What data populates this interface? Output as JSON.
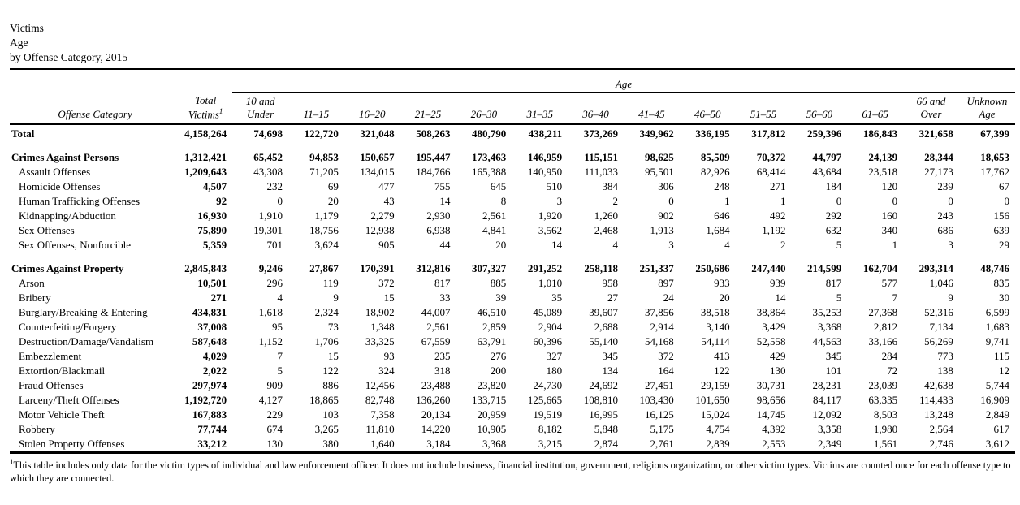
{
  "page": {
    "title_lines": [
      "Victims",
      "Age",
      "by Offense Category, 2015"
    ]
  },
  "table": {
    "age_spanner_label": "Age",
    "headers": {
      "offense_category": "Offense Category",
      "total_line1": "Total",
      "total_line2": "Victims",
      "total_sup": "1"
    },
    "age_headers": [
      "10 and\nUnder",
      "11–15",
      "16–20",
      "21–25",
      "26–30",
      "31–35",
      "36–40",
      "41–45",
      "46–50",
      "51–55",
      "56–60",
      "61–65",
      "66 and\nOver",
      "Unknown\nAge"
    ],
    "rows": [
      {
        "label": "Total",
        "type": "grand",
        "values": [
          "4,158,264",
          "74,698",
          "122,720",
          "321,048",
          "508,263",
          "480,790",
          "438,211",
          "373,269",
          "349,962",
          "336,195",
          "317,812",
          "259,396",
          "186,843",
          "321,658",
          "67,399"
        ]
      },
      {
        "type": "gap"
      },
      {
        "label": "Crimes Against Persons",
        "type": "section",
        "values": [
          "1,312,421",
          "65,452",
          "94,853",
          "150,657",
          "195,447",
          "173,463",
          "146,959",
          "115,151",
          "98,625",
          "85,509",
          "70,372",
          "44,797",
          "24,139",
          "28,344",
          "18,653"
        ]
      },
      {
        "label": "Assault Offenses",
        "type": "detail",
        "values": [
          "1,209,643",
          "43,308",
          "71,205",
          "134,015",
          "184,766",
          "165,388",
          "140,950",
          "111,033",
          "95,501",
          "82,926",
          "68,414",
          "43,684",
          "23,518",
          "27,173",
          "17,762"
        ]
      },
      {
        "label": "Homicide Offenses",
        "type": "detail",
        "values": [
          "4,507",
          "232",
          "69",
          "477",
          "755",
          "645",
          "510",
          "384",
          "306",
          "248",
          "271",
          "184",
          "120",
          "239",
          "67"
        ]
      },
      {
        "label": "Human Trafficking Offenses",
        "type": "detail",
        "values": [
          "92",
          "0",
          "20",
          "43",
          "14",
          "8",
          "3",
          "2",
          "0",
          "1",
          "1",
          "0",
          "0",
          "0",
          "0"
        ]
      },
      {
        "label": "Kidnapping/Abduction",
        "type": "detail",
        "values": [
          "16,930",
          "1,910",
          "1,179",
          "2,279",
          "2,930",
          "2,561",
          "1,920",
          "1,260",
          "902",
          "646",
          "492",
          "292",
          "160",
          "243",
          "156"
        ]
      },
      {
        "label": "Sex Offenses",
        "type": "detail",
        "values": [
          "75,890",
          "19,301",
          "18,756",
          "12,938",
          "6,938",
          "4,841",
          "3,562",
          "2,468",
          "1,913",
          "1,684",
          "1,192",
          "632",
          "340",
          "686",
          "639"
        ]
      },
      {
        "label": "Sex Offenses, Nonforcible",
        "type": "detail",
        "values": [
          "5,359",
          "701",
          "3,624",
          "905",
          "44",
          "20",
          "14",
          "4",
          "3",
          "4",
          "2",
          "5",
          "1",
          "3",
          "29"
        ]
      },
      {
        "type": "gap"
      },
      {
        "label": "Crimes Against Property",
        "type": "section",
        "values": [
          "2,845,843",
          "9,246",
          "27,867",
          "170,391",
          "312,816",
          "307,327",
          "291,252",
          "258,118",
          "251,337",
          "250,686",
          "247,440",
          "214,599",
          "162,704",
          "293,314",
          "48,746"
        ]
      },
      {
        "label": "Arson",
        "type": "detail",
        "values": [
          "10,501",
          "296",
          "119",
          "372",
          "817",
          "885",
          "1,010",
          "958",
          "897",
          "933",
          "939",
          "817",
          "577",
          "1,046",
          "835"
        ]
      },
      {
        "label": "Bribery",
        "type": "detail",
        "values": [
          "271",
          "4",
          "9",
          "15",
          "33",
          "39",
          "35",
          "27",
          "24",
          "20",
          "14",
          "5",
          "7",
          "9",
          "30"
        ]
      },
      {
        "label": "Burglary/Breaking & Entering",
        "type": "detail",
        "values": [
          "434,831",
          "1,618",
          "2,324",
          "18,902",
          "44,007",
          "46,510",
          "45,089",
          "39,607",
          "37,856",
          "38,518",
          "38,864",
          "35,253",
          "27,368",
          "52,316",
          "6,599"
        ]
      },
      {
        "label": "Counterfeiting/Forgery",
        "type": "detail",
        "values": [
          "37,008",
          "95",
          "73",
          "1,348",
          "2,561",
          "2,859",
          "2,904",
          "2,688",
          "2,914",
          "3,140",
          "3,429",
          "3,368",
          "2,812",
          "7,134",
          "1,683"
        ]
      },
      {
        "label": "Destruction/Damage/Vandalism",
        "type": "detail",
        "values": [
          "587,648",
          "1,152",
          "1,706",
          "33,325",
          "67,559",
          "63,791",
          "60,396",
          "55,140",
          "54,168",
          "54,114",
          "52,558",
          "44,563",
          "33,166",
          "56,269",
          "9,741"
        ]
      },
      {
        "label": "Embezzlement",
        "type": "detail",
        "values": [
          "4,029",
          "7",
          "15",
          "93",
          "235",
          "276",
          "327",
          "345",
          "372",
          "413",
          "429",
          "345",
          "284",
          "773",
          "115"
        ]
      },
      {
        "label": "Extortion/Blackmail",
        "type": "detail",
        "values": [
          "2,022",
          "5",
          "122",
          "324",
          "318",
          "200",
          "180",
          "134",
          "164",
          "122",
          "130",
          "101",
          "72",
          "138",
          "12"
        ]
      },
      {
        "label": "Fraud Offenses",
        "type": "detail",
        "values": [
          "297,974",
          "909",
          "886",
          "12,456",
          "23,488",
          "23,820",
          "24,730",
          "24,692",
          "27,451",
          "29,159",
          "30,731",
          "28,231",
          "23,039",
          "42,638",
          "5,744"
        ]
      },
      {
        "label": "Larceny/Theft Offenses",
        "type": "detail",
        "values": [
          "1,192,720",
          "4,127",
          "18,865",
          "82,748",
          "136,260",
          "133,715",
          "125,665",
          "108,810",
          "103,430",
          "101,650",
          "98,656",
          "84,117",
          "63,335",
          "114,433",
          "16,909"
        ]
      },
      {
        "label": "Motor Vehicle Theft",
        "type": "detail",
        "values": [
          "167,883",
          "229",
          "103",
          "7,358",
          "20,134",
          "20,959",
          "19,519",
          "16,995",
          "16,125",
          "15,024",
          "14,745",
          "12,092",
          "8,503",
          "13,248",
          "2,849"
        ]
      },
      {
        "label": "Robbery",
        "type": "detail",
        "values": [
          "77,744",
          "674",
          "3,265",
          "11,810",
          "14,220",
          "10,905",
          "8,182",
          "5,848",
          "5,175",
          "4,754",
          "4,392",
          "3,358",
          "1,980",
          "2,564",
          "617"
        ]
      },
      {
        "label": "Stolen Property Offenses",
        "type": "detail",
        "values": [
          "33,212",
          "130",
          "380",
          "1,640",
          "3,184",
          "3,368",
          "3,215",
          "2,874",
          "2,761",
          "2,839",
          "2,553",
          "2,349",
          "1,561",
          "2,746",
          "3,612"
        ]
      }
    ]
  },
  "footnote": {
    "sup": "1",
    "text": "This table includes only data for the victim types of individual and law enforcement officer. It does not include business, financial institution, government, religious organization, or other victim types. Victims are counted once for each offense type to which they are connected."
  }
}
